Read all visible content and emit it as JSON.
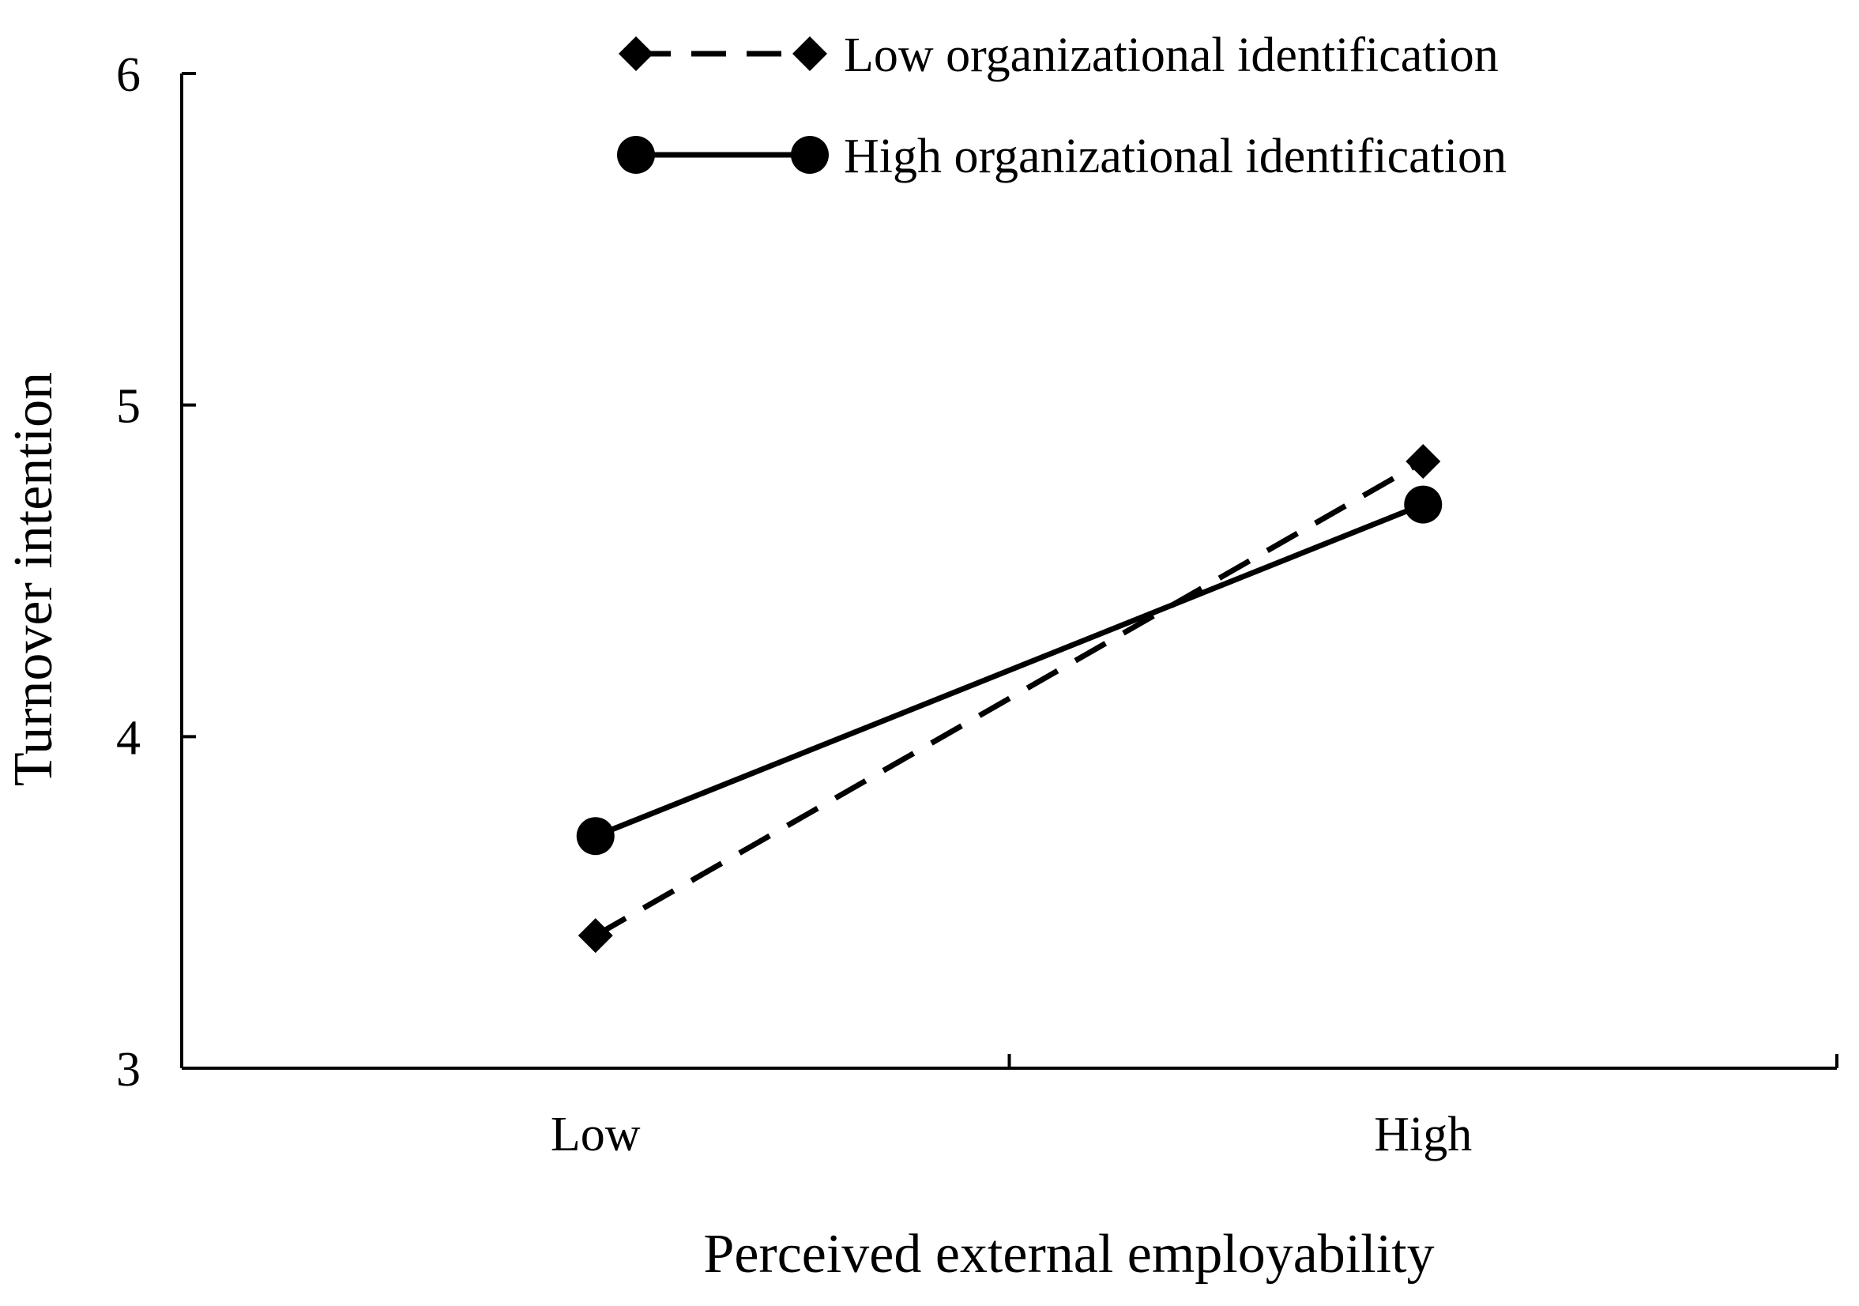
{
  "chart_data": {
    "type": "line",
    "title": "",
    "xlabel": "Perceived external employability",
    "ylabel": "Turnover intention",
    "categories": [
      "Low",
      "High"
    ],
    "ylim": [
      3,
      6
    ],
    "yticks": [
      "3",
      "4",
      "5",
      "6"
    ],
    "grid": false,
    "legend_position": "top-right",
    "series": [
      {
        "name": "Low organizational identification",
        "values": [
          3.4,
          4.83
        ],
        "line_style": "dashed",
        "marker": "diamond",
        "color": "#000000"
      },
      {
        "name": "High organizational identification",
        "values": [
          3.7,
          4.7
        ],
        "line_style": "solid",
        "marker": "circle",
        "color": "#000000"
      }
    ]
  }
}
